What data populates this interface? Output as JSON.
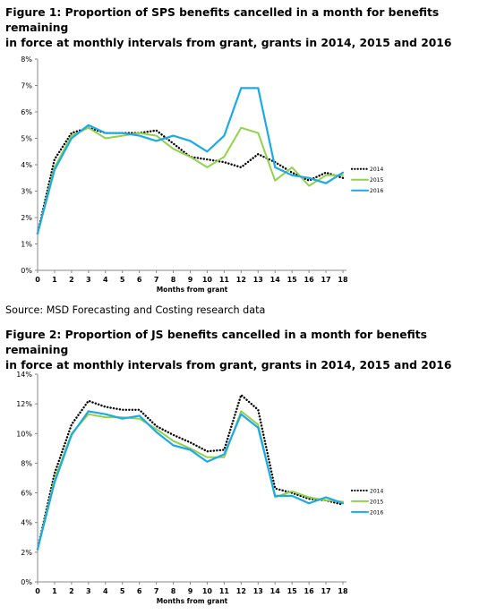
{
  "figures": [
    {
      "title": "Figure 1: Proportion of SPS benefits cancelled in a month for benefits remaining\nin force at monthly intervals from grant, grants in 2014, 2015 and 2016"
    },
    {
      "title": "Figure 2: Proportion of JS benefits cancelled in a month for benefits remaining\nin force at monthly intervals from grant, grants in 2014, 2015 and 2016"
    }
  ],
  "source_text": "Source: MSD Forecasting and Costing research data",
  "colors": {
    "s2014": "#000000",
    "s2015": "#92d050",
    "s2016": "#1fa9e1"
  },
  "chart_data": [
    {
      "type": "line",
      "xlabel": "Months from grant",
      "ylabel": "",
      "x": [
        0,
        1,
        2,
        3,
        4,
        5,
        6,
        7,
        8,
        9,
        10,
        11,
        12,
        13,
        14,
        15,
        16,
        17,
        18
      ],
      "yticks": [
        "0%",
        "1%",
        "2%",
        "3%",
        "4%",
        "5%",
        "6%",
        "7%",
        "8%"
      ],
      "ylim": [
        0,
        8
      ],
      "legend_position": "right",
      "grid": false,
      "series": [
        {
          "name": "2014",
          "style": "dotted",
          "values": [
            1.4,
            4.2,
            5.2,
            5.4,
            5.2,
            5.2,
            5.2,
            5.3,
            4.8,
            4.3,
            4.2,
            4.1,
            3.9,
            4.4,
            4.1,
            3.7,
            3.4,
            3.7,
            3.5
          ]
        },
        {
          "name": "2015",
          "style": "solid",
          "values": [
            1.4,
            3.9,
            5.1,
            5.4,
            5.0,
            5.1,
            5.2,
            5.1,
            4.6,
            4.3,
            3.9,
            4.3,
            5.4,
            5.2,
            3.4,
            3.9,
            3.2,
            3.6,
            3.6
          ]
        },
        {
          "name": "2016",
          "style": "solid",
          "values": [
            1.4,
            3.8,
            5.0,
            5.5,
            5.2,
            5.2,
            5.1,
            4.9,
            5.1,
            4.9,
            4.5,
            5.1,
            6.9,
            6.9,
            3.9,
            3.6,
            3.5,
            3.3,
            3.7
          ]
        }
      ]
    },
    {
      "type": "line",
      "xlabel": "Months from grant",
      "ylabel": "",
      "x": [
        0,
        1,
        2,
        3,
        4,
        5,
        6,
        7,
        8,
        9,
        10,
        11,
        12,
        13,
        14,
        15,
        16,
        17,
        18
      ],
      "yticks": [
        "0%",
        "2%",
        "4%",
        "6%",
        "8%",
        "10%",
        "12%",
        "14%"
      ],
      "ylim": [
        0,
        14
      ],
      "legend_position": "right",
      "grid": false,
      "series": [
        {
          "name": "2014",
          "style": "dotted",
          "values": [
            2.2,
            7.3,
            10.6,
            12.2,
            11.8,
            11.6,
            11.6,
            10.5,
            9.9,
            9.4,
            8.8,
            8.9,
            12.6,
            11.6,
            6.3,
            6.0,
            5.6,
            5.5,
            5.2
          ]
        },
        {
          "name": "2015",
          "style": "solid",
          "values": [
            2.2,
            6.9,
            10.0,
            11.3,
            11.1,
            11.1,
            11.0,
            10.3,
            9.5,
            9.0,
            8.4,
            8.4,
            11.5,
            10.6,
            5.7,
            6.1,
            5.7,
            5.5,
            5.4
          ]
        },
        {
          "name": "2016",
          "style": "solid",
          "values": [
            2.2,
            6.7,
            9.9,
            11.5,
            11.3,
            11.0,
            11.2,
            10.1,
            9.2,
            8.9,
            8.1,
            8.6,
            11.3,
            10.4,
            5.8,
            5.8,
            5.3,
            5.7,
            5.3
          ]
        }
      ]
    }
  ]
}
